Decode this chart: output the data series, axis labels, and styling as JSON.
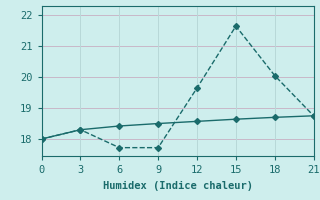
{
  "line1_x": [
    0,
    3,
    6,
    9,
    12,
    15,
    18,
    21
  ],
  "line1_y": [
    18.0,
    18.3,
    17.72,
    17.72,
    19.65,
    21.65,
    20.05,
    18.75
  ],
  "line2_x": [
    0,
    3,
    6,
    9,
    12,
    15,
    18,
    21
  ],
  "line2_y": [
    18.0,
    18.3,
    18.42,
    18.5,
    18.57,
    18.64,
    18.7,
    18.75
  ],
  "line_color": "#1a6b6b",
  "bg_color": "#ceeeed",
  "grid_color_h": "#c8b8c8",
  "grid_color_v": "#b8d8d8",
  "xlabel": "Humidex (Indice chaleur)",
  "xlim": [
    0,
    21
  ],
  "ylim": [
    17.45,
    22.3
  ],
  "xticks": [
    0,
    3,
    6,
    9,
    12,
    15,
    18,
    21
  ],
  "yticks": [
    18,
    19,
    20,
    21,
    22
  ],
  "marker": "D",
  "markersize": 3.0,
  "linewidth": 1.0,
  "xlabel_fontsize": 7.5,
  "tick_fontsize": 7.5
}
